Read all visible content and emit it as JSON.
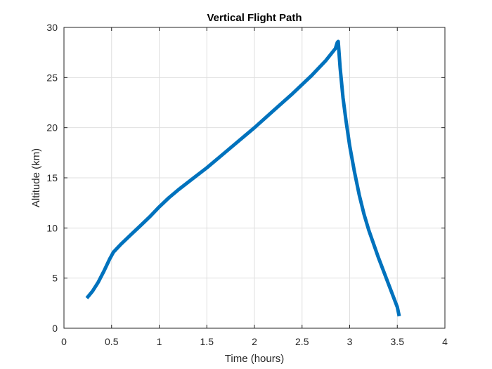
{
  "chart_data": {
    "type": "line",
    "title": "Vertical Flight Path",
    "xlabel": "Time (hours)",
    "ylabel": "Altitude (km)",
    "xlim": [
      0,
      4
    ],
    "ylim": [
      0,
      30
    ],
    "xticks": [
      0,
      0.5,
      1,
      1.5,
      2,
      2.5,
      3,
      3.5,
      4
    ],
    "xtick_labels": [
      "0",
      "0.5",
      "1",
      "1.5",
      "2",
      "2.5",
      "3",
      "3.5",
      "4"
    ],
    "yticks": [
      0,
      5,
      10,
      15,
      20,
      25,
      30
    ],
    "ytick_labels": [
      "0",
      "5",
      "10",
      "15",
      "20",
      "25",
      "30"
    ],
    "grid": true,
    "line_color": "#0072BD",
    "series": [
      {
        "x": [
          0.24,
          0.3,
          0.36,
          0.42,
          0.48,
          0.52,
          0.56,
          0.6,
          0.7,
          0.8,
          0.9,
          1.0,
          1.1,
          1.2,
          1.35,
          1.5,
          1.65,
          1.8,
          2.0,
          2.2,
          2.4,
          2.6,
          2.75,
          2.85,
          2.87,
          2.88,
          2.9,
          2.93,
          2.96,
          3.0,
          3.05,
          3.1,
          3.15,
          3.2,
          3.3,
          3.4,
          3.5,
          3.52
        ],
        "y": [
          3.0,
          3.7,
          4.6,
          5.7,
          6.9,
          7.6,
          8.0,
          8.4,
          9.3,
          10.2,
          11.1,
          12.1,
          13.0,
          13.8,
          14.9,
          16.0,
          17.2,
          18.4,
          20.0,
          21.7,
          23.4,
          25.2,
          26.7,
          27.9,
          28.5,
          28.6,
          26.0,
          23.0,
          20.8,
          18.2,
          15.6,
          13.3,
          11.4,
          9.8,
          7.1,
          4.6,
          2.1,
          1.2
        ]
      }
    ]
  }
}
